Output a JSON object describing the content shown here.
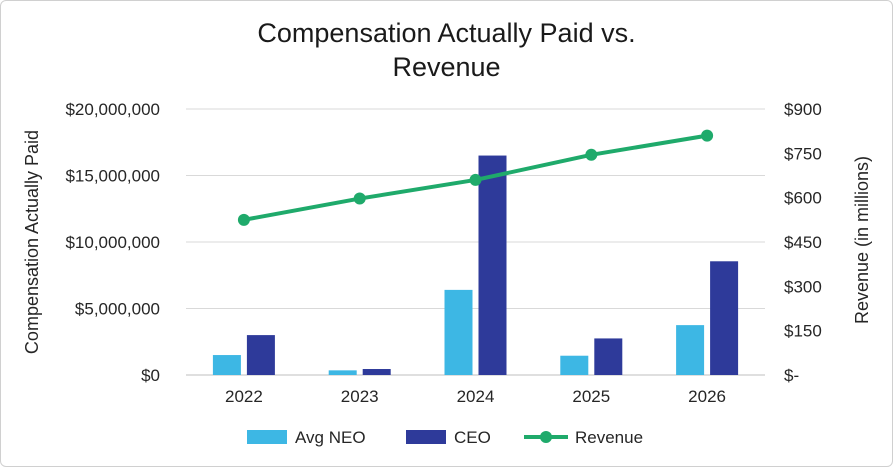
{
  "chart_data": {
    "type": "bar",
    "title_lines": [
      "Compensation Actually Paid vs.",
      "Revenue"
    ],
    "categories": [
      "2022",
      "2023",
      "2024",
      "2025",
      "2026"
    ],
    "series": [
      {
        "name": "Avg NEO",
        "type": "bar",
        "axis": "left",
        "color": "#3db7e4",
        "values": [
          1500000,
          350000,
          6400000,
          1450000,
          3750000
        ]
      },
      {
        "name": "CEO",
        "type": "bar",
        "axis": "left",
        "color": "#2e3a9a",
        "values": [
          3000000,
          450000,
          16500000,
          2750000,
          8550000
        ]
      },
      {
        "name": "Revenue",
        "type": "line",
        "axis": "right",
        "color": "#1faa6b",
        "values": [
          525,
          597,
          660,
          745,
          810
        ]
      }
    ],
    "ylabel": "Compensation Actually Paid",
    "y2label": "Revenue (in millions)",
    "ylim": [
      0,
      20000000
    ],
    "y2lim": [
      0,
      900
    ],
    "yticks": [
      "$0",
      "$5,000,000",
      "$10,000,000",
      "$15,000,000",
      "$20,000,000"
    ],
    "y2ticks": [
      "$-",
      "$150",
      "$300",
      "$450",
      "$600",
      "$750",
      "$900"
    ],
    "grid": true,
    "legend_position": "bottom"
  }
}
